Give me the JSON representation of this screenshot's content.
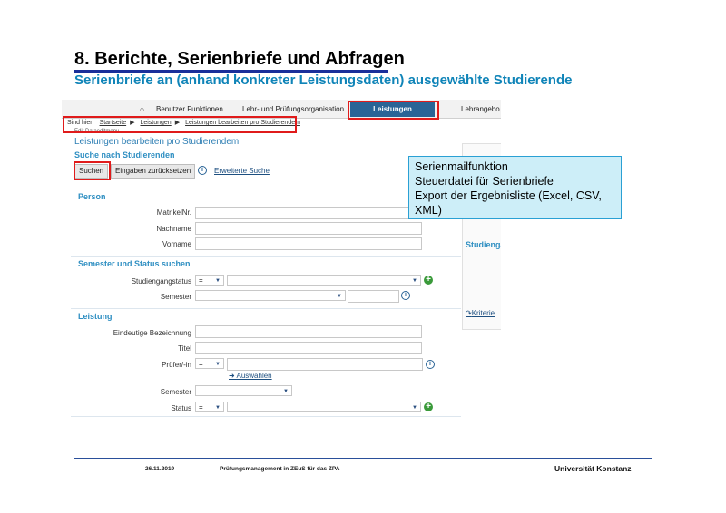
{
  "slide": {
    "title": "8. Berichte, Serienbriefe und Abfragen",
    "subtitle": "Serienbriefe an (anhand konkreter Leistungsdaten) ausgewählte Studierende"
  },
  "app": {
    "nav": {
      "items": [
        "Benutzer Funktionen",
        "Lehr- und Prüfungsorganisation",
        "Leistungen",
        "Lehrangebo"
      ],
      "active": "Leistungen"
    },
    "breadcrumb": {
      "prefix": "Sind hier:",
      "items": [
        "Startseite",
        "Leistungen",
        "Leistungen bearbeiten pro Studierendem"
      ]
    },
    "edit_row": "Edit Dataeditmenu",
    "page_title": "Leistungen bearbeiten pro Studierendem",
    "search_title": "Suche nach Studierenden",
    "buttons": {
      "search": "Suchen",
      "reset": "Eingaben zurücksetzen",
      "advanced": "Erweiterte Suche"
    },
    "person": {
      "title": "Person",
      "fields": [
        "MatrikelNr.",
        "Nachname",
        "Vorname"
      ]
    },
    "semester_status": {
      "title": "Semester und Status suchen",
      "status_label": "Studiengangstatus",
      "status_op": "=",
      "semester_label": "Semester"
    },
    "leistung": {
      "title": "Leistung",
      "fields": [
        "Eindeutige Bezeichnung",
        "Titel"
      ],
      "pruefer_label": "Prüfer/-in",
      "pruefer_op": "=",
      "select_link": "Auswählen",
      "semester_label": "Semester",
      "status_label": "Status",
      "status_op": "="
    },
    "right_panel": {
      "title": "Studienga",
      "link": "Kriterie"
    }
  },
  "callout": {
    "lines": [
      "Serienmailfunktion",
      "Steuerdatei für Serienbriefe",
      "Export der Ergebnisliste (Excel, CSV, XML)"
    ]
  },
  "footer": {
    "date": "26.11.2019",
    "center": "Prüfungsmanagement in ZEuS für das ZPA",
    "right": "Universität Konstanz"
  },
  "colors": {
    "title_rule": "#1a2f9a",
    "subtitle": "#0f84b8",
    "nav_active": "#2a6496",
    "highlight": "#e01b1b",
    "callout_bg": "#cdeef8"
  }
}
